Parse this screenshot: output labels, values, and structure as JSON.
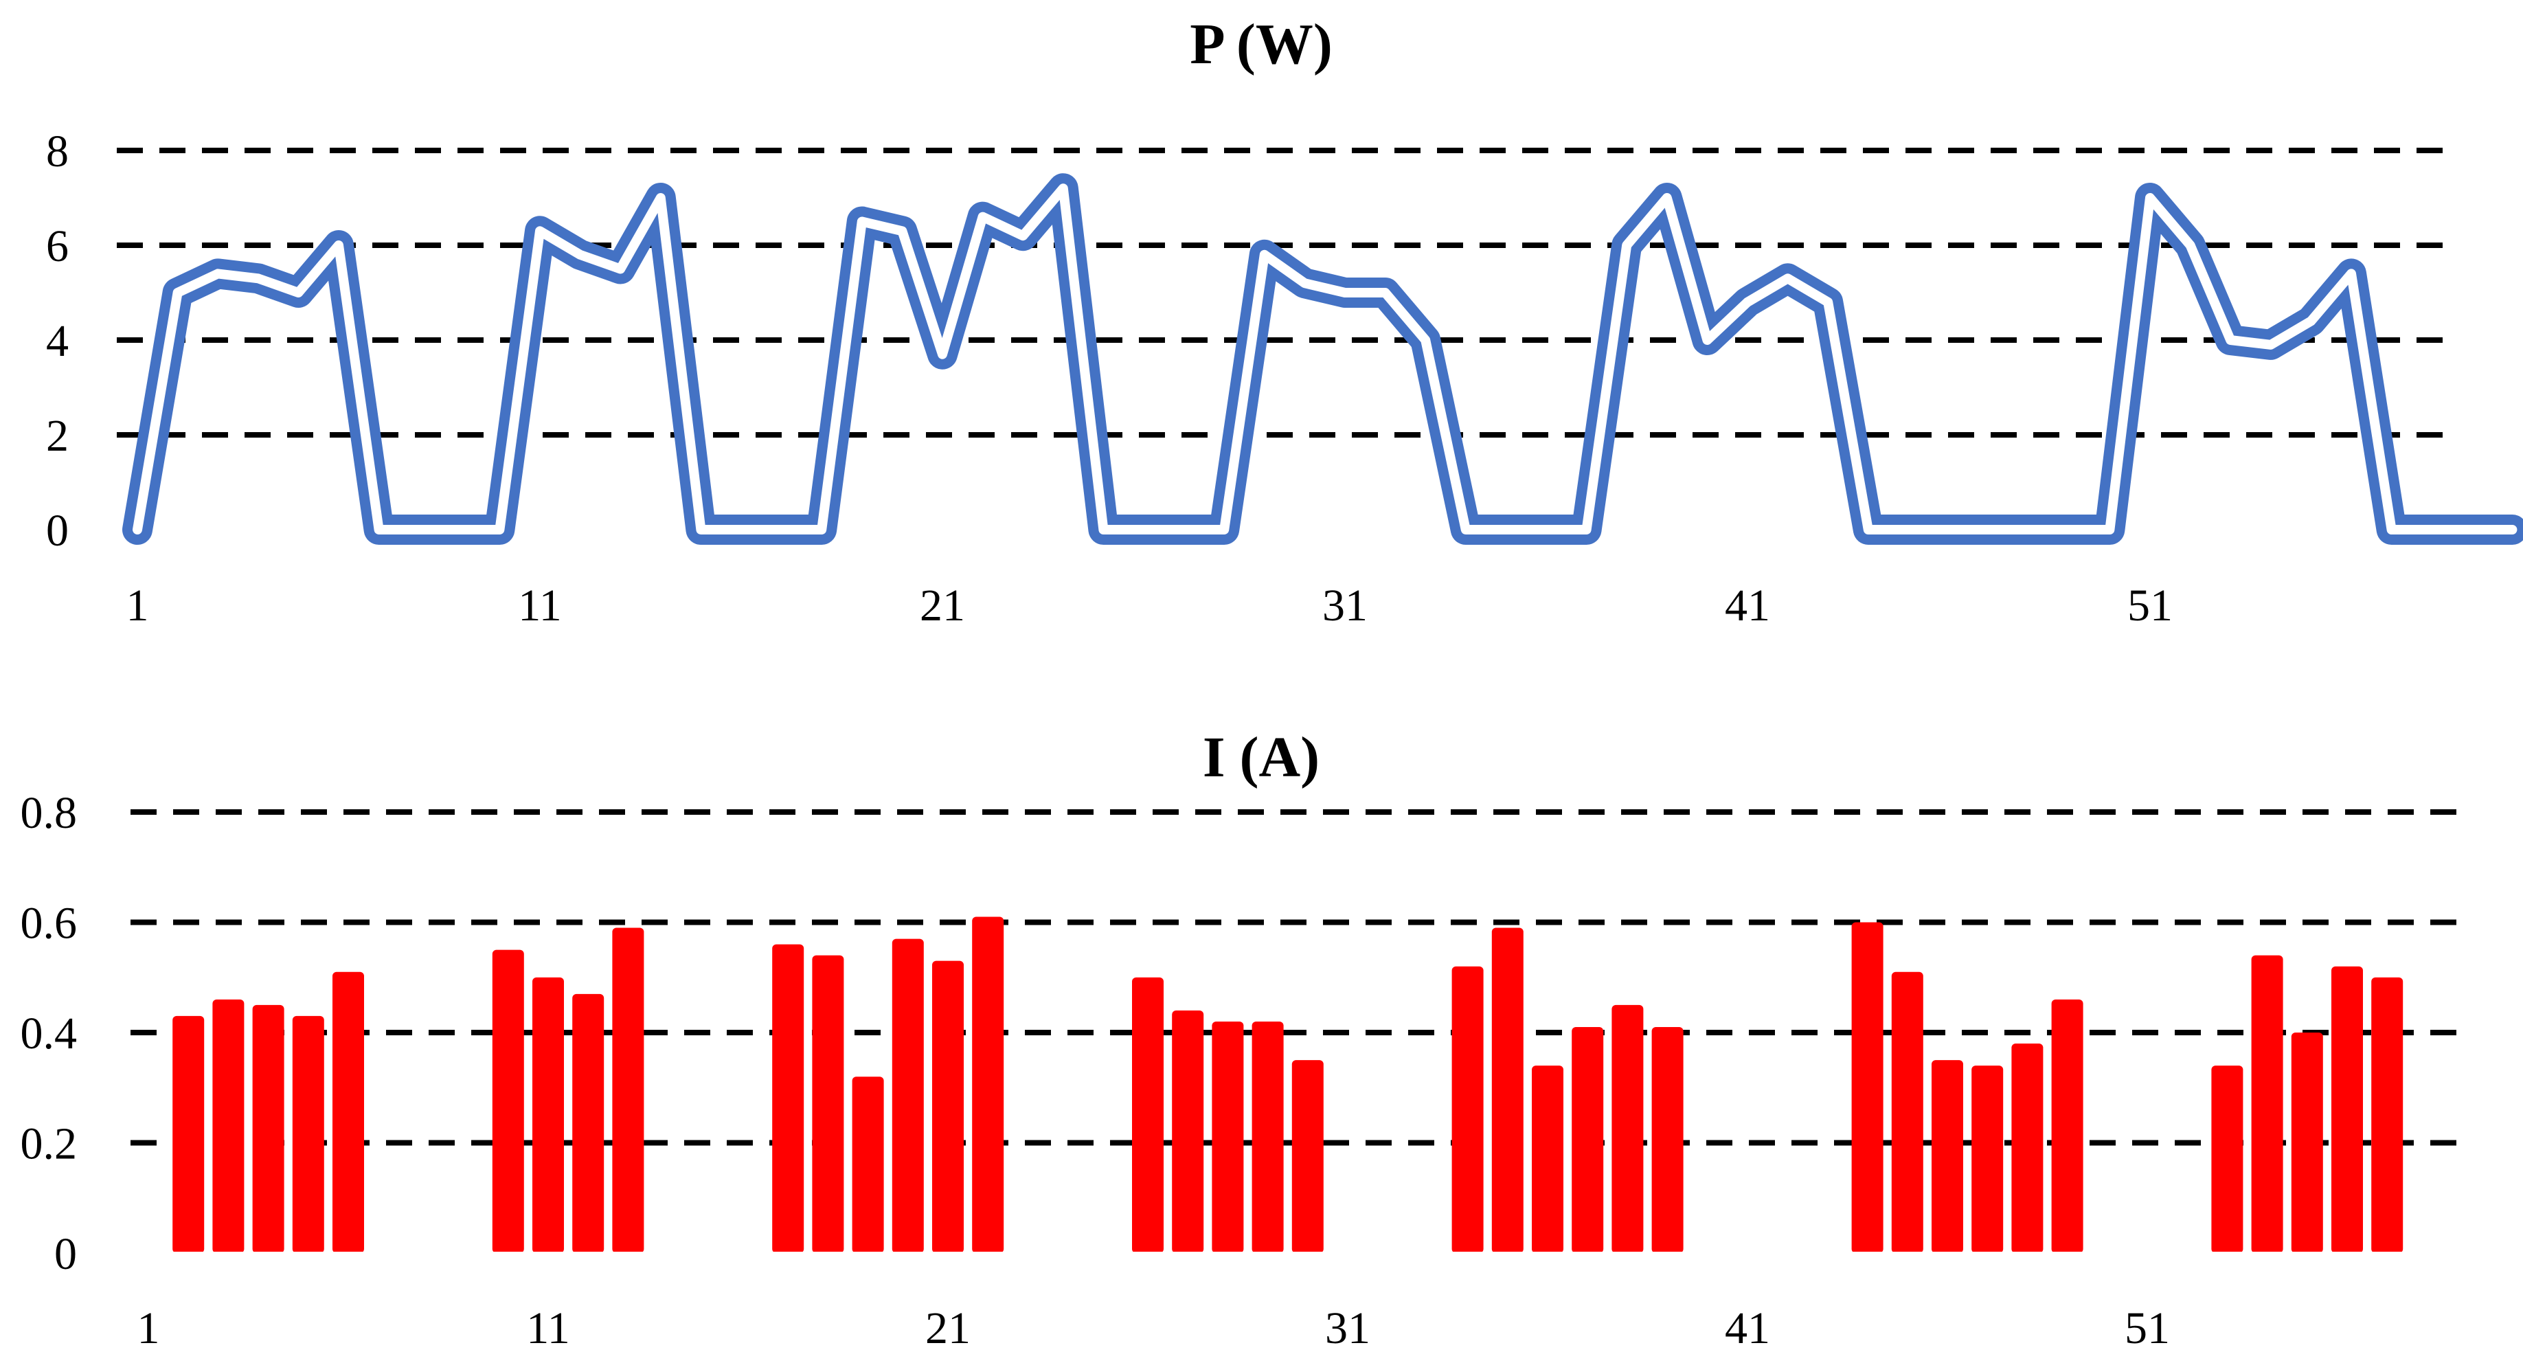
{
  "chart_data": [
    {
      "type": "line",
      "title": "P (W)",
      "xlabel": "",
      "ylabel": "",
      "ylim": [
        0,
        8
      ],
      "yticks": [
        0,
        2,
        4,
        6,
        8
      ],
      "xticks": [
        1,
        11,
        21,
        31,
        41,
        51
      ],
      "grid": true,
      "x": [
        1,
        2,
        3,
        4,
        5,
        6,
        7,
        8,
        9,
        10,
        11,
        12,
        13,
        14,
        15,
        16,
        17,
        18,
        19,
        20,
        21,
        22,
        23,
        24,
        25,
        26,
        27,
        28,
        29,
        30,
        31,
        32,
        33,
        34,
        35,
        36,
        37,
        38,
        39,
        40,
        41,
        42,
        43,
        44,
        45,
        46,
        47,
        48,
        49,
        50,
        51,
        52,
        53,
        54,
        55,
        56,
        57,
        58,
        59,
        60
      ],
      "series": [
        {
          "color": "#4472C4",
          "values": [
            0,
            5,
            5.4,
            5.3,
            5,
            6,
            0,
            0,
            0,
            0,
            6.3,
            5.8,
            5.5,
            7,
            0,
            0,
            0,
            0,
            6.5,
            6.3,
            3.7,
            6.6,
            6.2,
            7.2,
            0,
            0,
            0,
            0,
            5.8,
            5.2,
            5,
            5,
            4,
            0,
            0,
            0,
            0,
            6,
            7,
            4,
            4.8,
            5.3,
            4.8,
            0,
            0,
            0,
            0,
            0,
            0,
            0,
            7,
            6,
            4,
            3.9,
            4.4,
            5.4,
            0,
            0,
            0,
            0
          ]
        }
      ]
    },
    {
      "type": "bar",
      "title": "I (A)",
      "xlabel": "",
      "ylabel": "",
      "ylim": [
        0,
        0.8
      ],
      "yticks": [
        "0",
        "0.2",
        "0.4",
        "0.6",
        "0.8"
      ],
      "xticks": [
        1,
        11,
        21,
        31,
        41,
        51
      ],
      "grid": true,
      "x": [
        2,
        3,
        4,
        5,
        6,
        10,
        11,
        12,
        13,
        17,
        18,
        19,
        20,
        21,
        22,
        26,
        27,
        28,
        29,
        30,
        34,
        35,
        36,
        37,
        38,
        39,
        44,
        45,
        46,
        47,
        48,
        49,
        53,
        54,
        55,
        56,
        57
      ],
      "series": [
        {
          "color": "#FF0000",
          "values": [
            0.43,
            0.46,
            0.45,
            0.43,
            0.51,
            0.55,
            0.5,
            0.47,
            0.59,
            0.56,
            0.54,
            0.32,
            0.57,
            0.53,
            0.61,
            0.5,
            0.44,
            0.42,
            0.42,
            0.35,
            0.52,
            0.59,
            0.34,
            0.41,
            0.45,
            0.41,
            0.6,
            0.51,
            0.35,
            0.34,
            0.38,
            0.46,
            0.34,
            0.54,
            0.4,
            0.52,
            0.5
          ]
        }
      ]
    }
  ]
}
